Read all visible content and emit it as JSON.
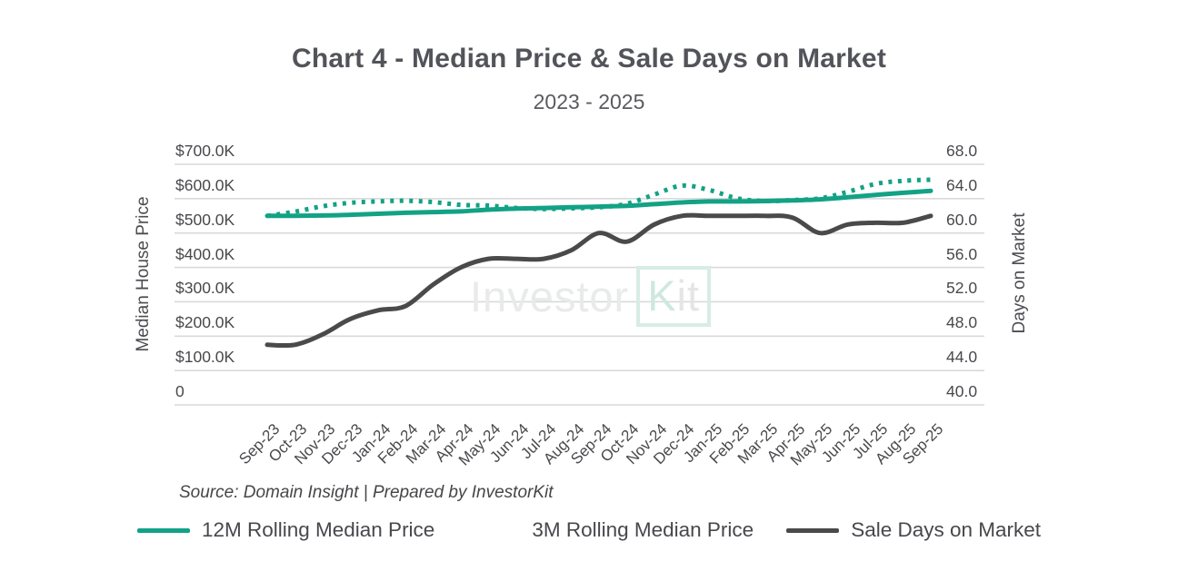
{
  "title": "Chart 4 - Median Price & Sale Days on Market",
  "subtitle": "2023 - 2025",
  "source": "Source: Domain Insight | Prepared by InvestorKit",
  "watermark": {
    "part1": "Investor",
    "part2_k": "K",
    "part2_it": "it"
  },
  "colors": {
    "teal": "#12A285",
    "dark": "#4A4A4A",
    "grid": "#D9D9D9"
  },
  "legend": [
    {
      "label": "12M Rolling Median Price",
      "style": "solid",
      "color": "#12A285"
    },
    {
      "label": "3M Rolling Median Price",
      "style": "dotted",
      "color": "#12A285"
    },
    {
      "label": "Sale Days on Market",
      "style": "solid",
      "color": "#4A4A4A"
    }
  ],
  "chart_data": {
    "type": "line",
    "title": "Chart 4 - Median Price & Sale Days on Market",
    "subtitle": "2023 - 2025",
    "grid": true,
    "legend_position": "bottom",
    "categories": [
      "Sep-23",
      "Oct-23",
      "Nov-23",
      "Dec-23",
      "Jan-24",
      "Feb-24",
      "Mar-24",
      "Apr-24",
      "May-24",
      "Jun-24",
      "Jul-24",
      "Aug-24",
      "Sep-24",
      "Oct-24",
      "Nov-24",
      "Dec-24",
      "Jan-25",
      "Feb-25",
      "Mar-25",
      "Apr-25",
      "May-25",
      "Jun-25",
      "Jul-25",
      "Aug-25",
      "Sep-25"
    ],
    "left_axis": {
      "title": "Median House Price",
      "unit": "$K",
      "range": [
        0,
        700
      ],
      "ticks": [
        "$700.0K",
        "$600.0K",
        "$500.0K",
        "$400.0K",
        "$300.0K",
        "$200.0K",
        "$100.0K",
        "0"
      ]
    },
    "right_axis": {
      "title": "Days on Market",
      "range": [
        40,
        68
      ],
      "ticks": [
        "68.0",
        "64.0",
        "60.0",
        "56.0",
        "52.0",
        "48.0",
        "44.0",
        "40.0"
      ]
    },
    "series": [
      {
        "name": "12M Rolling Median Price",
        "axis": "left",
        "style": "solid",
        "color": "#12A285",
        "values": [
          550,
          550,
          551,
          553,
          556,
          559,
          561,
          563,
          568,
          571,
          573,
          575,
          577,
          579,
          584,
          589,
          592,
          592,
          593,
          595,
          598,
          604,
          611,
          617,
          623
        ]
      },
      {
        "name": "3M Rolling Median Price",
        "axis": "left",
        "style": "dotted",
        "color": "#12A285",
        "values": [
          550,
          562,
          578,
          588,
          592,
          594,
          590,
          582,
          580,
          573,
          570,
          572,
          575,
          585,
          612,
          638,
          625,
          601,
          593,
          596,
          601,
          620,
          643,
          652,
          655
        ]
      },
      {
        "name": "Sale Days on Market",
        "axis": "right",
        "style": "solid",
        "color": "#4A4A4A",
        "values": [
          47,
          47,
          48.2,
          50,
          51,
          51.5,
          54,
          56,
          57,
          57,
          57,
          58,
          60,
          59,
          61,
          62,
          62,
          62,
          62,
          61.8,
          60,
          61,
          61.2,
          61.2,
          62
        ]
      }
    ]
  }
}
